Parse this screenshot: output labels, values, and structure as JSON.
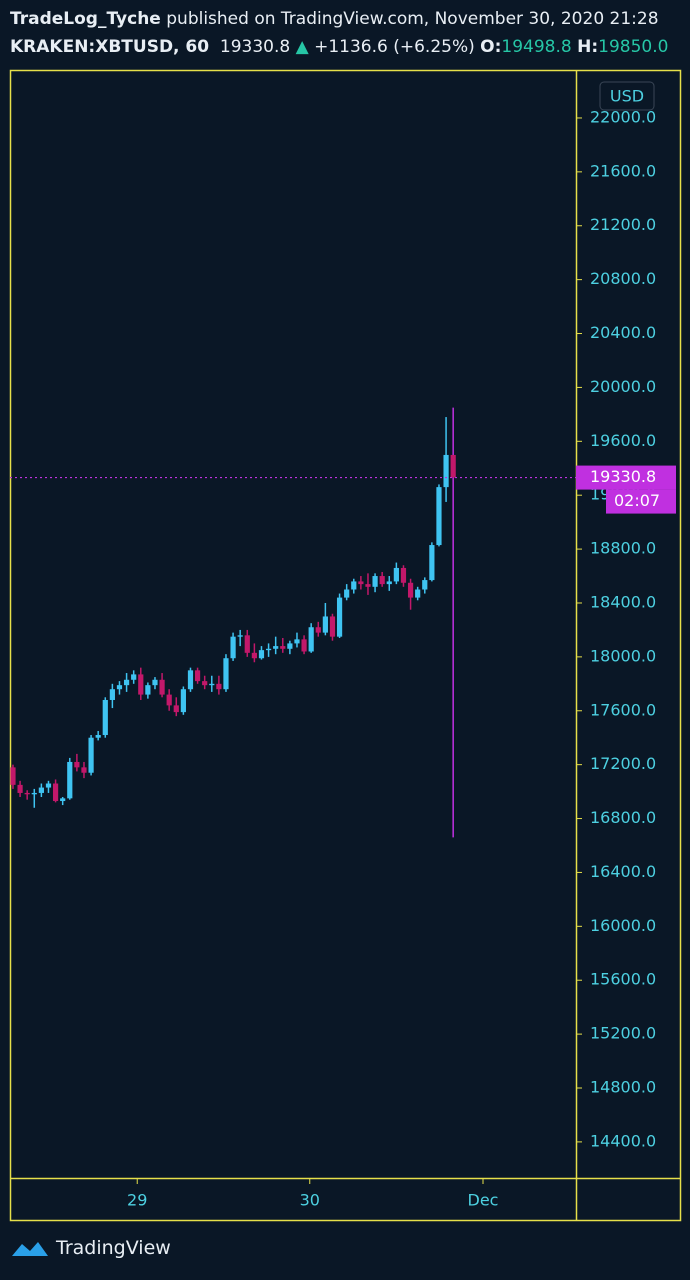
{
  "chart_data": {
    "type": "candlestick",
    "header": {
      "author": "TradeLog_Tyche",
      "published": " published on TradingView.com, November 30, 2020 21:28",
      "symbol": "KRAKEN:XBTUSD, 60",
      "last": "19330.8",
      "arrow": "▲",
      "change": "+1136.6 (+6.25%)",
      "open_label": "O:",
      "open": "19498.8",
      "high_label": "H:",
      "high": "19850.0"
    },
    "currency": "USD",
    "countdown": "02:07",
    "brand": "TradingView",
    "up_color": "#3fc4f2",
    "down_color": "#c2186a",
    "last_color": "#c030e0",
    "series": [
      {
        "open": [
          17180,
          17050,
          16990,
          16980,
          16990,
          17030,
          17060,
          16930,
          16950,
          17220,
          17180,
          17140,
          17400,
          17420,
          17680,
          17760,
          17790,
          17830,
          17870,
          17720,
          17790,
          17830,
          17720,
          17640,
          17590,
          17760,
          17900,
          17820,
          17790,
          17800,
          17760,
          17990,
          18150,
          18160,
          18030,
          17990,
          18050,
          18060,
          18080,
          18060,
          18100,
          18130,
          18040,
          18220,
          18180,
          18300,
          18150,
          18440,
          18500,
          18560,
          18540,
          18520,
          18600,
          18540,
          18560,
          18660,
          18550,
          18440,
          18500,
          18570,
          18830,
          19260,
          19498.8
        ],
        "high": [
          17200,
          17080,
          17010,
          17020,
          17060,
          17080,
          17090,
          16960,
          17250,
          17280,
          17220,
          17420,
          17450,
          17700,
          17800,
          17820,
          17880,
          17900,
          17920,
          17810,
          17850,
          17880,
          17760,
          17700,
          17780,
          17920,
          17920,
          17860,
          17860,
          17860,
          18020,
          18180,
          18200,
          18200,
          18100,
          18080,
          18100,
          18150,
          18140,
          18120,
          18180,
          18160,
          18250,
          18260,
          18400,
          18320,
          18470,
          18540,
          18580,
          18600,
          18620,
          18620,
          18630,
          18600,
          18700,
          18680,
          18580,
          18520,
          18590,
          18850,
          19280,
          19780,
          19850
        ],
        "low": [
          17020,
          16960,
          16940,
          16880,
          16960,
          16990,
          16920,
          16900,
          16940,
          17150,
          17100,
          17120,
          17380,
          17400,
          17620,
          17720,
          17740,
          17800,
          17680,
          17690,
          17760,
          17700,
          17600,
          17560,
          17570,
          17740,
          17800,
          17760,
          17740,
          17720,
          17740,
          17970,
          18080,
          18000,
          17960,
          17980,
          18000,
          18020,
          18030,
          18020,
          18070,
          18020,
          18030,
          18150,
          18160,
          18120,
          18140,
          18420,
          18470,
          18500,
          18460,
          18480,
          18520,
          18490,
          18540,
          18520,
          18350,
          18420,
          18470,
          18560,
          18820,
          19150,
          16660
        ],
        "close": [
          17050,
          16990,
          16980,
          16990,
          17030,
          17060,
          16930,
          16950,
          17220,
          17180,
          17140,
          17400,
          17420,
          17680,
          17760,
          17790,
          17830,
          17870,
          17720,
          17790,
          17830,
          17720,
          17640,
          17590,
          17760,
          17900,
          17820,
          17790,
          17800,
          17760,
          17990,
          18150,
          18160,
          18030,
          17990,
          18050,
          18060,
          18080,
          18060,
          18100,
          18130,
          18040,
          18220,
          18180,
          18300,
          18150,
          18440,
          18500,
          18560,
          18540,
          18520,
          18600,
          18540,
          18560,
          18660,
          18550,
          18440,
          18500,
          18570,
          18830,
          19260,
          19498.8,
          19330.8
        ]
      }
    ],
    "last_price": {
      "value": 19330.8,
      "label": "19330.8"
    },
    "ylim": [
      14132,
      22356
    ],
    "yticks": [
      {
        "value": 14400,
        "label": "14400.0"
      },
      {
        "value": 14800,
        "label": "14800.0"
      },
      {
        "value": 15200,
        "label": "15200.0"
      },
      {
        "value": 15600,
        "label": "15600.0"
      },
      {
        "value": 16000,
        "label": "16000.0"
      },
      {
        "value": 16400,
        "label": "16400.0"
      },
      {
        "value": 16800,
        "label": "16800.0"
      },
      {
        "value": 17200,
        "label": "17200.0"
      },
      {
        "value": 17600,
        "label": "17600.0"
      },
      {
        "value": 18000,
        "label": "18000.0"
      },
      {
        "value": 18400,
        "label": "18400.0"
      },
      {
        "value": 18800,
        "label": "18800.0"
      },
      {
        "value": 19200,
        "label": "19200.0"
      },
      {
        "value": 19600,
        "label": "19600.0"
      },
      {
        "value": 20000,
        "label": "20000.0"
      },
      {
        "value": 20400,
        "label": "20400.0"
      },
      {
        "value": 20800,
        "label": "20800.0"
      },
      {
        "value": 21200,
        "label": "21200.0"
      },
      {
        "value": 21600,
        "label": "21600.0"
      },
      {
        "value": 22000,
        "label": "22000.0"
      }
    ],
    "xlim": [
      -0.42,
      79.3
    ],
    "xticks": [
      {
        "value": 17.5,
        "label": "29"
      },
      {
        "value": 41.8,
        "label": "30"
      },
      {
        "value": 66.2,
        "label": "Dec"
      }
    ]
  }
}
